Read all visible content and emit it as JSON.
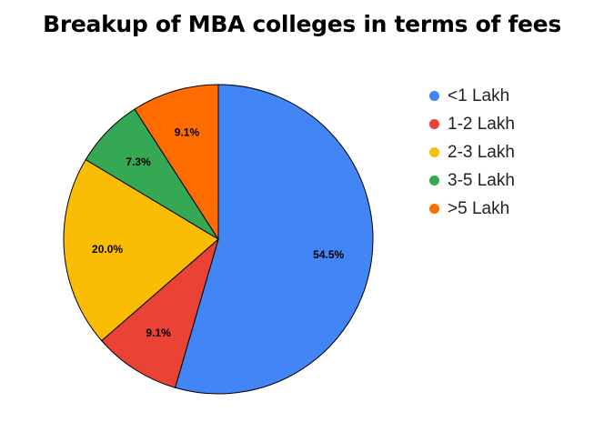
{
  "chart_data": {
    "type": "pie",
    "title": "Breakup of MBA colleges in terms of fees",
    "categories": [
      "<1 Lakh",
      "1-2 Lakh",
      "2-3 Lakh",
      "3-5 Lakh",
      ">5 Lakh"
    ],
    "values": [
      54.5,
      9.1,
      20.0,
      7.3,
      9.1
    ],
    "labels": [
      "54.5%",
      "9.1%",
      "20.0%",
      "7.3%",
      "9.1%"
    ],
    "colors": [
      "#4285f4",
      "#ea4335",
      "#fbbc04",
      "#34a853",
      "#ff6d01"
    ],
    "legend_position": "right",
    "start_angle": "top, clockwise"
  }
}
